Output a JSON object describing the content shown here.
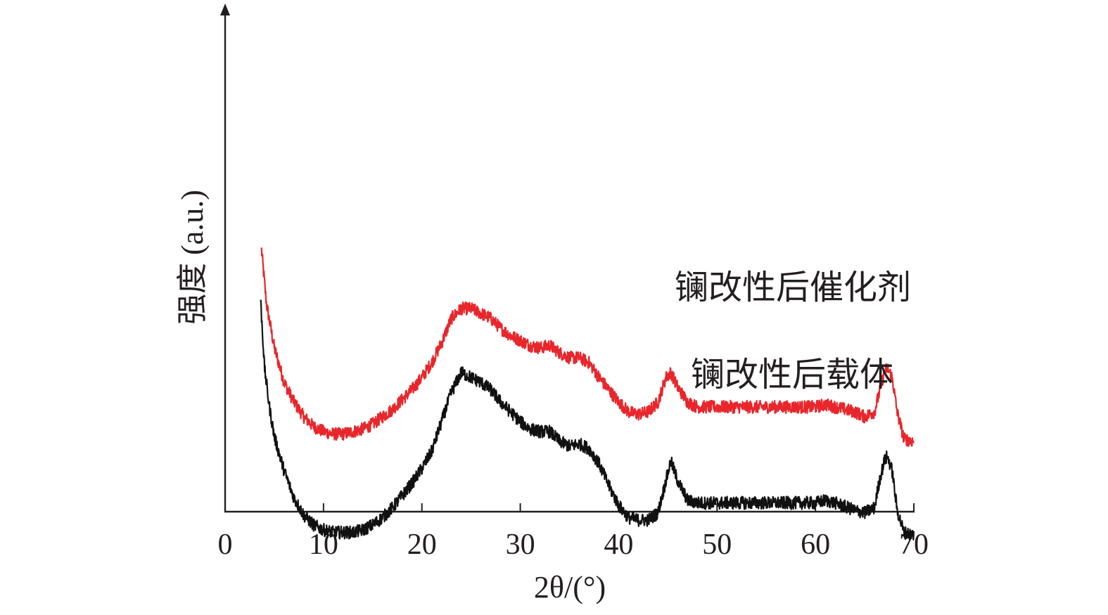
{
  "chart_data": {
    "type": "line",
    "xlabel": "2θ/(°)",
    "ylabel": "强度 (a.u.)",
    "xlim": [
      0,
      70
    ],
    "x_ticks": [
      0,
      10,
      20,
      30,
      40,
      50,
      60,
      70
    ],
    "y_ticks": [],
    "grid": false,
    "legend": "none (series labeled directly on plot)",
    "colors": {
      "axis": "#231f20",
      "red_series": "#e8262b",
      "black_series": "#111111"
    },
    "series": [
      {
        "name": "镧改性后催化剂",
        "color": "#e8262b",
        "x": [
          3.7,
          4.2,
          5,
          6,
          7,
          8,
          9,
          10,
          11,
          12,
          13,
          14,
          15,
          16,
          17,
          18,
          19,
          20,
          21,
          22,
          23,
          24,
          25,
          26,
          27,
          28,
          29,
          30,
          31,
          32,
          33,
          34,
          35,
          36,
          37,
          38,
          39,
          40,
          41,
          42,
          43,
          44,
          44.8,
          45.3,
          46,
          47,
          48,
          50,
          52,
          54,
          56,
          58,
          60,
          61,
          62,
          64,
          65,
          66,
          66.5,
          67,
          67.3,
          67.8,
          68.3,
          69,
          70
        ],
        "y": [
          95,
          84,
          75,
          68,
          64,
          61,
          59,
          58,
          57.5,
          57.5,
          58,
          58.5,
          59.5,
          61,
          62.5,
          64.5,
          66.5,
          69,
          72,
          76,
          81,
          83,
          83,
          82,
          81,
          79,
          77.5,
          76.5,
          75.5,
          75,
          75.5,
          74,
          73,
          73,
          72,
          69,
          66.5,
          64,
          62,
          61.5,
          62,
          64,
          69,
          70,
          67,
          64,
          63,
          63,
          63,
          63,
          63,
          63,
          63,
          63.5,
          63,
          62,
          61,
          62,
          66,
          70,
          71,
          69,
          62,
          56.5,
          56
        ]
      },
      {
        "name": "镧改性后载体",
        "color": "#111111",
        "x": [
          3.6,
          4,
          4.5,
          5,
          6,
          7,
          8,
          9,
          10,
          11,
          12,
          13,
          14,
          15,
          16,
          17,
          18,
          19,
          20,
          21,
          22,
          23,
          24,
          25,
          26,
          27,
          28,
          29,
          30,
          31,
          32,
          33,
          34,
          35,
          36,
          37,
          38,
          39,
          40,
          41,
          42,
          43,
          44,
          44.8,
          45.3,
          46,
          47,
          48,
          50,
          52,
          54,
          56,
          58,
          60,
          61,
          62,
          64,
          65,
          66,
          66.5,
          67,
          67.3,
          67.8,
          68.3,
          69,
          70
        ],
        "y": [
          85,
          71,
          63,
          57,
          50,
          44.5,
          41,
          39,
          38,
          37.5,
          37.5,
          37.5,
          38,
          39,
          40.5,
          42.5,
          45,
          47.5,
          50.5,
          54,
          60,
          66,
          70,
          69,
          68,
          66.5,
          64,
          62,
          60,
          58.5,
          58,
          58,
          56,
          55,
          55.5,
          54.5,
          51.5,
          47,
          43,
          40.5,
          40,
          40,
          41.5,
          48,
          52,
          48,
          44,
          43.5,
          43.5,
          43.5,
          43.5,
          43.5,
          43.5,
          43.5,
          44,
          43.5,
          42,
          41.5,
          42.5,
          48,
          52,
          53,
          50,
          42,
          37.5,
          37
        ]
      }
    ]
  }
}
